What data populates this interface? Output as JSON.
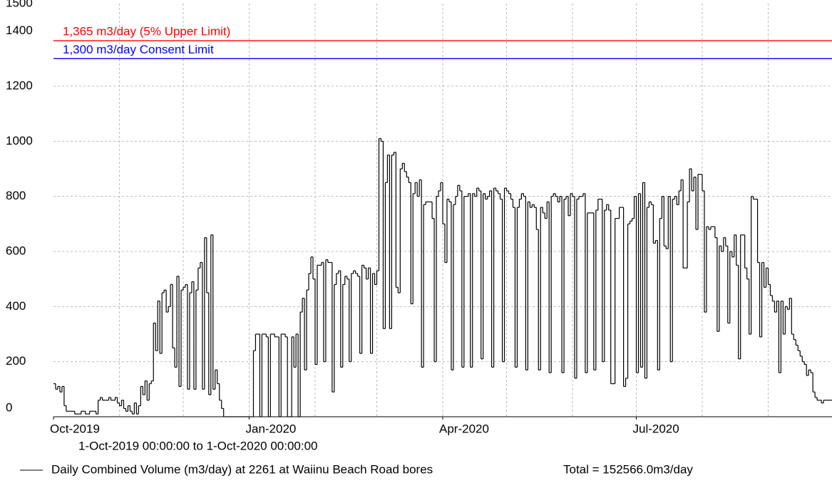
{
  "chart_data": {
    "type": "step",
    "subtitle": "1-Oct-2019 00:00:00 to  1-Oct-2020 00:00:00",
    "series": [
      {
        "name": "Daily Combined Volume (m3/day) at 2261 at Waiinu Beach Road bores",
        "color": "#000000",
        "values": [
          120,
          100,
          110,
          90,
          110,
          40,
          20,
          20,
          20,
          20,
          10,
          10,
          10,
          20,
          20,
          10,
          10,
          20,
          20,
          20,
          10,
          60,
          70,
          60,
          60,
          60,
          70,
          60,
          60,
          70,
          50,
          40,
          60,
          30,
          20,
          40,
          20,
          10,
          50,
          10,
          40,
          110,
          80,
          130,
          60,
          120,
          130,
          340,
          240,
          420,
          230,
          450,
          460,
          380,
          400,
          480,
          250,
          180,
          510,
          110,
          460,
          470,
          480,
          100,
          450,
          490,
          100,
          460,
          540,
          560,
          100,
          650,
          450,
          80,
          660,
          100,
          170,
          120,
          60,
          30,
          0,
          0,
          0,
          0,
          0,
          0,
          0,
          0,
          0,
          0,
          0,
          0,
          0,
          0,
          240,
          300,
          300,
          0,
          300,
          300,
          290,
          0,
          300,
          300,
          290,
          290,
          0,
          300,
          300,
          290,
          0,
          0,
          290,
          180,
          300,
          0,
          380,
          430,
          170,
          460,
          520,
          580,
          500,
          190,
          550,
          550,
          560,
          200,
          570,
          560,
          560,
          90,
          480,
          520,
          530,
          180,
          480,
          510,
          500,
          200,
          520,
          530,
          520,
          510,
          230,
          550,
          540,
          500,
          540,
          230,
          520,
          480,
          530,
          1010,
          1000,
          320,
          850,
          950,
          320,
          950,
          960,
          470,
          450,
          900,
          920,
          890,
          870,
          850,
          410,
          810,
          850,
          800,
          860,
          180,
          770,
          780,
          780,
          780,
          720,
          200,
          800,
          820,
          850,
          700,
          560,
          790,
          780,
          170,
          770,
          800,
          840,
          820,
          180,
          800,
          800,
          810,
          180,
          810,
          800,
          830,
          820,
          210,
          810,
          790,
          800,
          820,
          180,
          830,
          820,
          810,
          790,
          200,
          830,
          820,
          810,
          790,
          760,
          180,
          760,
          790,
          810,
          800,
          170,
          780,
          760,
          770,
          760,
          680,
          170,
          760,
          740,
          720,
          780,
          160,
          800,
          810,
          800,
          780,
          800,
          160,
          790,
          800,
          730,
          810,
          800,
          140,
          790,
          800,
          800,
          810,
          160,
          740,
          740,
          740,
          170,
          750,
          790,
          790,
          200,
          750,
          770,
          750,
          120,
          120,
          720,
          720,
          760,
          760,
          110,
          140,
          700,
          710,
          720,
          800,
          160,
          810,
          180,
          850,
          140,
          760,
          780,
          770,
          630,
          640,
          170,
          720,
          800,
          620,
          610,
          800,
          200,
          790,
          800,
          770,
          820,
          860,
          540,
          540,
          780,
          900,
          820,
          870,
          680,
          880,
          880,
          820,
          380,
          690,
          680,
          690,
          690,
          650,
          310,
          620,
          600,
          650,
          620,
          340,
          600,
          580,
          660,
          550,
          210,
          660,
          660,
          540,
          500,
          300,
          800,
          790,
          790,
          560,
          290,
          560,
          470,
          540,
          480,
          440,
          420,
          380,
          420,
          160,
          420,
          300,
          400,
          390,
          430,
          300,
          280,
          260,
          240,
          220,
          200,
          190,
          150,
          170,
          160,
          90,
          70,
          60,
          60,
          50,
          60,
          60,
          60,
          60,
          60,
          60
        ]
      }
    ],
    "total_label": "Total = 152566.0m3/day",
    "limits": [
      {
        "value": 1365,
        "label": "1,365 m3/day (5% Upper Limit)",
        "color": "#ff0000"
      },
      {
        "value": 1300,
        "label": "1,300 m3/day Consent Limit",
        "color": "#0000ff"
      }
    ],
    "xlim": [
      0,
      366
    ],
    "xticks": [
      {
        "value": 0,
        "label": "Oct-2019"
      },
      {
        "value": 92,
        "label": "Jan-2020"
      },
      {
        "value": 183,
        "label": "Apr-2020"
      },
      {
        "value": 274,
        "label": "Jul-2020"
      }
    ],
    "xgrid": [
      31,
      61,
      92,
      123,
      152,
      183,
      213,
      244,
      274,
      305,
      336
    ],
    "ylim": [
      0,
      1500
    ],
    "yticks": [
      0,
      200,
      400,
      600,
      800,
      1000,
      1200,
      1400,
      1500
    ],
    "grid": true
  }
}
